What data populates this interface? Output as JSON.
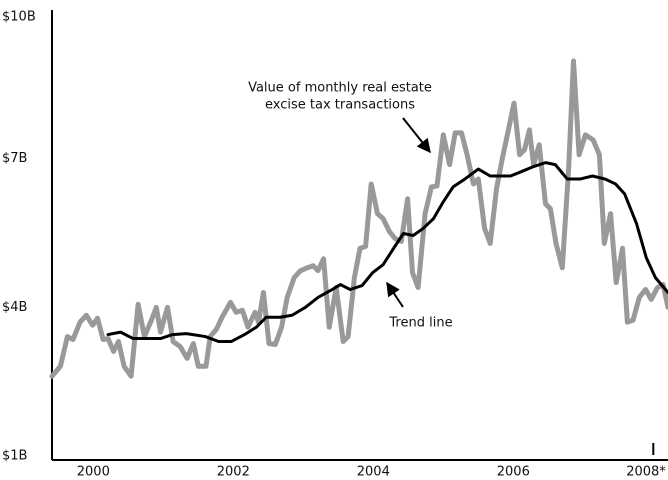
{
  "chart_data": {
    "type": "line",
    "annotations": [
      {
        "lines": [
          "Value of monthly real estate",
          "excise tax transactions"
        ]
      },
      {
        "lines": [
          "Trend line"
        ]
      }
    ],
    "xlim": [
      1999.41,
      2008.21
    ],
    "xticks": [
      2000,
      2002,
      2004,
      2006,
      {
        "value": 2008,
        "label": "2008*"
      }
    ],
    "ylim": [
      1,
      10
    ],
    "yticks": [
      {
        "value": 1,
        "label": "$1B"
      },
      {
        "value": 4,
        "label": "$4B"
      },
      {
        "value": 7,
        "label": "$7B"
      },
      {
        "value": 10,
        "label": "$10B"
      }
    ],
    "series": [
      {
        "color": "#999999",
        "width": 5,
        "x": [
          1999.41,
          1999.53,
          1999.63,
          1999.71,
          1999.81,
          1999.9,
          1999.99,
          2000.06,
          2000.14,
          2000.21,
          2000.29,
          2000.36,
          2000.44,
          2000.54,
          2000.64,
          2000.73,
          2000.83,
          2000.9,
          2000.96,
          2001.06,
          2001.14,
          2001.24,
          2001.34,
          2001.43,
          2001.5,
          2001.61,
          2001.67,
          2001.76,
          2001.84,
          2001.96,
          2002.04,
          2002.13,
          2002.21,
          2002.31,
          2002.36,
          2002.43,
          2002.51,
          2002.6,
          2002.69,
          2002.77,
          2002.87,
          2002.96,
          2003.06,
          2003.14,
          2003.21,
          2003.29,
          2003.37,
          2003.47,
          2003.57,
          2003.64,
          2003.73,
          2003.81,
          2003.89,
          2003.97,
          2004.06,
          2004.14,
          2004.23,
          2004.31,
          2004.4,
          2004.49,
          2004.56,
          2004.64,
          2004.74,
          2004.83,
          2004.91,
          2005,
          2005.09,
          2005.17,
          2005.26,
          2005.34,
          2005.43,
          2005.5,
          2005.59,
          2005.67,
          2005.76,
          2005.84,
          2005.93,
          2006.01,
          2006.09,
          2006.16,
          2006.23,
          2006.29,
          2006.37,
          2006.46,
          2006.53,
          2006.61,
          2006.7,
          2006.79,
          2006.86,
          2006.94,
          2007.03,
          2007.14,
          2007.23,
          2007.3,
          2007.39,
          2007.47,
          2007.56,
          2007.63,
          2007.71,
          2007.8,
          2007.89,
          2007.97,
          2008.06,
          2008.14,
          2008.21
        ],
        "values": [
          2.61,
          2.81,
          3.41,
          3.35,
          3.7,
          3.84,
          3.64,
          3.78,
          3.35,
          3.37,
          3.11,
          3.31,
          2.81,
          2.61,
          4.06,
          3.41,
          3.74,
          4.0,
          3.5,
          4.0,
          3.31,
          3.21,
          2.97,
          3.27,
          2.81,
          2.81,
          3.41,
          3.56,
          3.8,
          4.1,
          3.9,
          3.94,
          3.6,
          3.9,
          3.7,
          4.3,
          3.27,
          3.25,
          3.6,
          4.2,
          4.6,
          4.74,
          4.8,
          4.84,
          4.74,
          4.98,
          3.6,
          4.4,
          3.31,
          3.41,
          4.6,
          5.19,
          5.23,
          6.49,
          5.89,
          5.79,
          5.53,
          5.39,
          5.33,
          6.19,
          4.7,
          4.4,
          5.89,
          6.43,
          6.45,
          7.48,
          6.88,
          7.52,
          7.52,
          7.08,
          6.49,
          6.59,
          5.59,
          5.29,
          6.39,
          6.98,
          7.58,
          8.12,
          7.08,
          7.18,
          7.58,
          6.88,
          7.28,
          6.09,
          5.99,
          5.29,
          4.8,
          6.79,
          8.97,
          7.08,
          7.48,
          7.38,
          7.08,
          5.29,
          5.89,
          4.5,
          5.19,
          3.7,
          3.74,
          4.2,
          4.36,
          4.16,
          4.4,
          4.46,
          4.0
        ]
      },
      {
        "color": "#000000",
        "width": 3,
        "x": [
          2000.21,
          2000.39,
          2000.57,
          2000.74,
          2000.96,
          2001.13,
          2001.33,
          2001.6,
          2001.79,
          2001.97,
          2002.16,
          2002.33,
          2002.47,
          2002.67,
          2002.84,
          2003.03,
          2003.21,
          2003.39,
          2003.53,
          2003.67,
          2003.84,
          2003.99,
          2004.14,
          2004.29,
          2004.43,
          2004.57,
          2004.71,
          2004.86,
          2005,
          2005.14,
          2005.31,
          2005.5,
          2005.67,
          2005.81,
          2005.96,
          2006.1,
          2006.27,
          2006.46,
          2006.6,
          2006.77,
          2006.96,
          2007.13,
          2007.31,
          2007.46,
          2007.59,
          2007.76,
          2007.9,
          2008.03,
          2008.21
        ],
        "values": [
          3.45,
          3.5,
          3.37,
          3.37,
          3.37,
          3.45,
          3.47,
          3.41,
          3.31,
          3.31,
          3.45,
          3.6,
          3.8,
          3.8,
          3.84,
          4.0,
          4.2,
          4.34,
          4.46,
          4.36,
          4.44,
          4.7,
          4.86,
          5.19,
          5.49,
          5.45,
          5.59,
          5.79,
          6.13,
          6.43,
          6.59,
          6.79,
          6.65,
          6.65,
          6.65,
          6.73,
          6.83,
          6.92,
          6.88,
          6.59,
          6.59,
          6.65,
          6.59,
          6.49,
          6.29,
          5.69,
          5.0,
          4.6,
          4.3
        ]
      }
    ]
  }
}
